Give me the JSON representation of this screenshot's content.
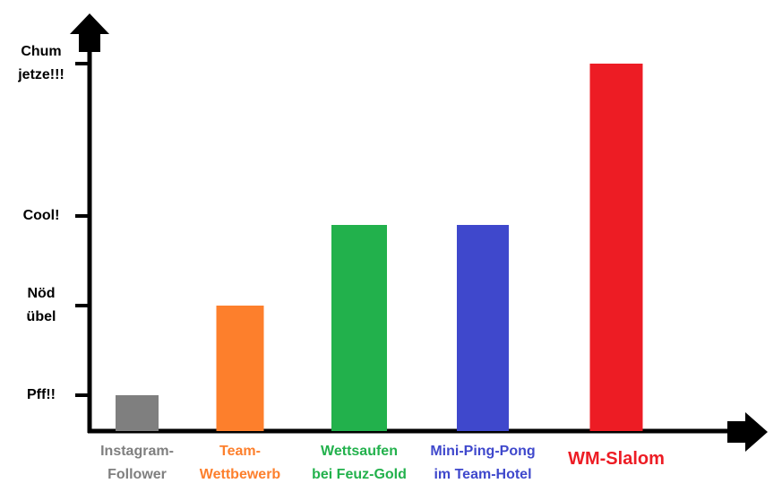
{
  "chart_data": {
    "type": "bar",
    "categories": [
      "Instagram-\nFollower",
      "Team-\nWettbewerb",
      "Wettsaufen\nbei Feuz-Gold",
      "Mini-Ping-Pong\nim Team-Hotel",
      "WM-Slalom"
    ],
    "values": [
      4,
      14,
      23,
      23,
      41
    ],
    "colors": [
      "#7f7f7f",
      "#fd7f2c",
      "#22b14c",
      "#3f48cc",
      "#ed1c24"
    ],
    "ylim": [
      0,
      45
    ],
    "yticks": [
      {
        "value": 4,
        "label": "Pff!!"
      },
      {
        "value": 14,
        "label": "Nöd\nübel"
      },
      {
        "value": 24,
        "label": "Cool!"
      },
      {
        "value": 41,
        "label": "Chum\njetze!!!"
      }
    ],
    "grid": false
  }
}
